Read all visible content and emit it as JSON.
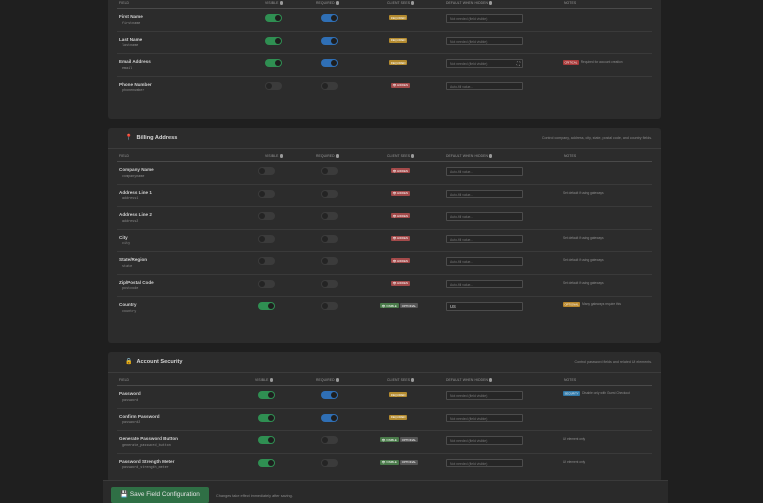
{
  "columns": {
    "field": "FIELD",
    "visible": "VISIBLE",
    "required": "REQUIRED",
    "client_sees": "CLIENT SEES",
    "default_when_hidden": "DEFAULT WHEN HIDDEN",
    "notes": "NOTES"
  },
  "contact": {
    "rows": [
      {
        "name": "First Name",
        "key": "firstname",
        "visible": true,
        "required": true,
        "badge": "REQUIRED",
        "placeholder": "Not needed (field visible)"
      },
      {
        "name": "Last Name",
        "key": "lastname",
        "visible": true,
        "required": true,
        "badge": "REQUIRED",
        "placeholder": "Not needed (field visible)"
      },
      {
        "name": "Email Address",
        "key": "email",
        "visible": true,
        "required": true,
        "badge": "REQUIRED",
        "placeholder": "Not needed (field visible)",
        "note_badge": "CRITICAL",
        "note": "Required for account creation"
      },
      {
        "name": "Phone Number",
        "key": "phonenumber",
        "visible": false,
        "required": false,
        "badge": "HIDDEN",
        "placeholder": "Auto-fill value..."
      }
    ]
  },
  "billing": {
    "title": "Billing Address",
    "description": "Control company, address, city, state, postal code, and country fields.",
    "rows": [
      {
        "name": "Company Name",
        "key": "companyname",
        "badge": "HIDDEN",
        "placeholder": "Auto-fill value..."
      },
      {
        "name": "Address Line 1",
        "key": "address1",
        "badge": "HIDDEN",
        "placeholder": "Auto-fill value...",
        "note": "Set default if using gateways"
      },
      {
        "name": "Address Line 2",
        "key": "address2",
        "badge": "HIDDEN",
        "placeholder": "Auto-fill value..."
      },
      {
        "name": "City",
        "key": "city",
        "badge": "HIDDEN",
        "placeholder": "Auto-fill value...",
        "note": "Set default if using gateways"
      },
      {
        "name": "State/Region",
        "key": "state",
        "badge": "HIDDEN",
        "placeholder": "Auto-fill value...",
        "note": "Set default if using gateways"
      },
      {
        "name": "Zip/Postal Code",
        "key": "postcode",
        "badge": "HIDDEN",
        "placeholder": "Auto-fill value...",
        "note": "Set default if using gateways"
      },
      {
        "name": "Country",
        "key": "country",
        "badge": "VISIBLE",
        "badge2": "OPTIONAL",
        "value": "US",
        "note_badge": "OPTIONAL",
        "note": "Many gateways require this"
      }
    ]
  },
  "security": {
    "title": "Account Security",
    "description": "Control password fields and related UI elements.",
    "rows": [
      {
        "name": "Password",
        "key": "password",
        "badge": "REQUIRED",
        "placeholder": "Not needed (field visible)",
        "note_badge": "SECURITY",
        "note": "Disable only with Guest Checkout"
      },
      {
        "name": "Confirm Password",
        "key": "password2",
        "badge": "REQUIRED",
        "placeholder": "Not needed (field visible)"
      },
      {
        "name": "Generate Password Button",
        "key": "generate_password_button",
        "badge": "VISIBLE",
        "badge2": "OPTIONAL",
        "placeholder": "Not needed (field visible)",
        "note": "UI element only"
      },
      {
        "name": "Password Strength Meter",
        "key": "password_strength_meter",
        "badge": "VISIBLE",
        "badge2": "OPTIONAL",
        "placeholder": "Not needed (field visible)",
        "note": "UI element only"
      }
    ]
  },
  "savebar": {
    "button": "Save Field Configuration",
    "note": "Changes take effect immediately after saving."
  },
  "colors": {
    "accent_green": "#2f8f52",
    "accent_blue": "#2f6fb5",
    "required": "#b38a2e",
    "hidden": "#a34a4a"
  }
}
